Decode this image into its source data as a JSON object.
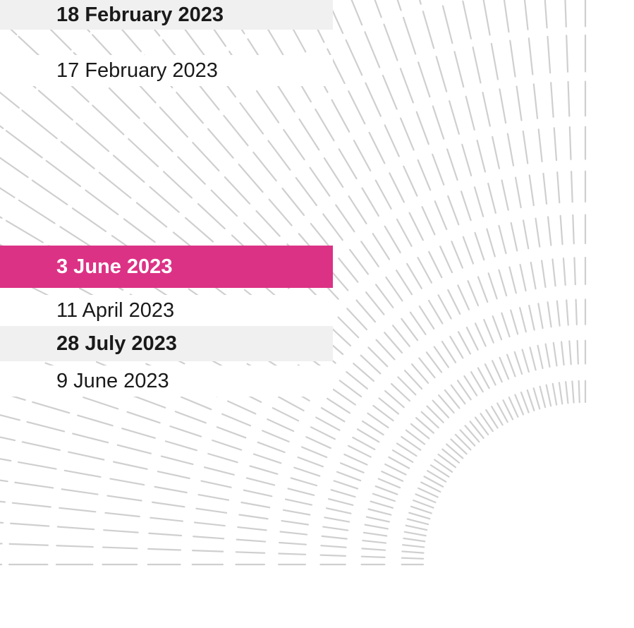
{
  "rows": [
    "18 February 2023",
    "17 February 2023",
    "3 June 2023",
    "11 April 2023",
    "28 July 2023",
    "9 June 2023"
  ]
}
